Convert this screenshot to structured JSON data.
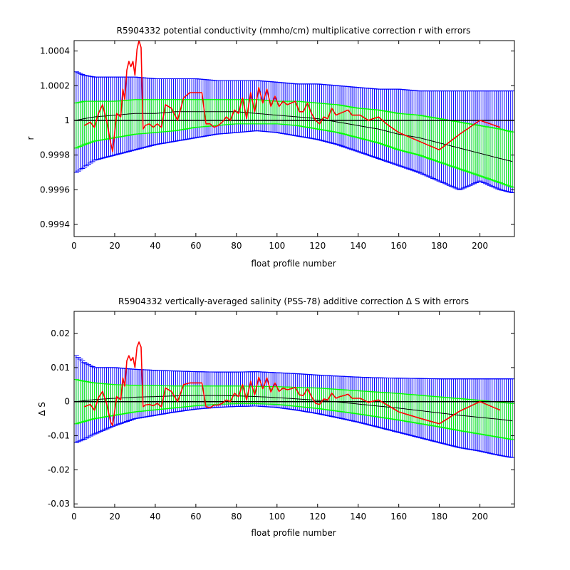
{
  "chart_data": [
    {
      "type": "line",
      "title": "R5904332 potential conductivity (mmho/cm) multiplicative correction r with errors",
      "xlabel": "float profile number",
      "ylabel": "r",
      "xlim": [
        0,
        217
      ],
      "ylim": [
        0.99933,
        1.00046
      ],
      "xticks": [
        0,
        20,
        40,
        60,
        80,
        100,
        120,
        140,
        160,
        180,
        200
      ],
      "xtick_labels": [
        "0",
        "20",
        "40",
        "60",
        "80",
        "100",
        "120",
        "140",
        "160",
        "180",
        "200"
      ],
      "yticks": [
        0.9994,
        0.9996,
        0.9998,
        1.0,
        1.0002,
        1.0004
      ],
      "ytick_labels": [
        "0.9994",
        "0.9996",
        "0.9998",
        "1",
        "1.0002",
        "1.0004"
      ],
      "reference_line": 1.0,
      "colors": {
        "outer_band": "#0000ff",
        "inner_band": "#00ff00",
        "fit": "#000000",
        "correction": "#ff0000",
        "reference": "#000000"
      },
      "bands": {
        "x": [
          1,
          5,
          10,
          20,
          30,
          40,
          50,
          60,
          70,
          80,
          90,
          100,
          110,
          120,
          130,
          140,
          150,
          160,
          170,
          180,
          190,
          200,
          210,
          217
        ],
        "fit": [
          1.0,
          1.00001,
          1.00002,
          1.00003,
          1.00004,
          1.00004,
          1.00005,
          1.00005,
          1.00005,
          1.00005,
          1.00004,
          1.00003,
          1.00002,
          1.00001,
          0.99999,
          0.99997,
          0.99995,
          0.99992,
          0.9999,
          0.99987,
          0.99984,
          0.99981,
          0.99978,
          0.99976
        ],
        "inner_upper": [
          1.0001,
          1.00011,
          1.00011,
          1.00011,
          1.00012,
          1.00012,
          1.00012,
          1.00012,
          1.00012,
          1.00012,
          1.00012,
          1.00011,
          1.00011,
          1.0001,
          1.00009,
          1.00007,
          1.00006,
          1.00004,
          1.00003,
          1.00001,
          0.99999,
          0.99997,
          0.99995,
          0.99993
        ],
        "inner_lower": [
          0.99984,
          0.99986,
          0.99988,
          0.9999,
          0.99992,
          0.99993,
          0.99994,
          0.99996,
          0.99997,
          0.99998,
          0.99998,
          0.99998,
          0.99997,
          0.99995,
          0.99993,
          0.9999,
          0.99987,
          0.99983,
          0.9998,
          0.99976,
          0.99972,
          0.99968,
          0.99964,
          0.99961
        ],
        "outer_upper": [
          1.00028,
          1.00026,
          1.00025,
          1.00025,
          1.00025,
          1.00024,
          1.00024,
          1.00024,
          1.00023,
          1.00023,
          1.00023,
          1.00022,
          1.00021,
          1.00021,
          1.0002,
          1.00019,
          1.00018,
          1.00018,
          1.00017,
          1.00017,
          1.00017,
          1.00017,
          1.00017,
          1.00017
        ],
        "outer_lower": [
          0.9997,
          0.99973,
          0.99977,
          0.9998,
          0.99983,
          0.99986,
          0.99988,
          0.9999,
          0.99992,
          0.99993,
          0.99994,
          0.99993,
          0.99991,
          0.99989,
          0.99986,
          0.99982,
          0.99978,
          0.99974,
          0.9997,
          0.99965,
          0.9996,
          0.99965,
          0.9996,
          0.99958
        ]
      },
      "series": [
        {
          "x": [
            5,
            8,
            10,
            12,
            14,
            16,
            18,
            19,
            21,
            23,
            24,
            25,
            26,
            27,
            28,
            29,
            30,
            31,
            32,
            33,
            34,
            35,
            37,
            39,
            41,
            43,
            45,
            48,
            51,
            54,
            57,
            60,
            63,
            65,
            67,
            69,
            71,
            73,
            75,
            77,
            79,
            81,
            83,
            85,
            87,
            89,
            91,
            93,
            95,
            97,
            99,
            101,
            103,
            105,
            107,
            109,
            111,
            113,
            115,
            117,
            119,
            121,
            123,
            125,
            127,
            129,
            131,
            133,
            135,
            137,
            139,
            141,
            145,
            150,
            155,
            160,
            170,
            180,
            190,
            200,
            210
          ],
          "values": [
            0.99997,
            0.99999,
            0.99996,
            1.00004,
            1.00009,
            1.0,
            0.99987,
            0.99982,
            1.00004,
            1.00002,
            1.00018,
            1.00012,
            1.00029,
            1.00034,
            1.00031,
            1.00034,
            1.00026,
            1.00041,
            1.00046,
            1.00042,
            0.99995,
            0.99997,
            0.99998,
            0.99996,
            0.99998,
            0.99996,
            1.00009,
            1.00007,
            1.0,
            1.00013,
            1.00016,
            1.00016,
            1.00016,
            0.99998,
            0.99998,
            0.99996,
            0.99997,
            0.99999,
            1.00002,
            1.0,
            1.00006,
            1.00004,
            1.00013,
            1.00001,
            1.00016,
            1.00005,
            1.00019,
            1.0001,
            1.00018,
            1.00008,
            1.00014,
            1.00008,
            1.00011,
            1.00009,
            1.0001,
            1.00011,
            1.00005,
            1.00005,
            1.0001,
            1.00004,
            1.0,
            0.99998,
            1.00002,
            1.00001,
            1.00007,
            1.00003,
            1.00004,
            1.00005,
            1.00006,
            1.00003,
            1.00003,
            1.00003,
            1.0,
            1.00002,
            0.99997,
            0.99993,
            0.99988,
            0.99983,
            0.99992,
            1.0,
            0.99996
          ]
        }
      ]
    },
    {
      "type": "line",
      "title": "R5904332 vertically-averaged salinity (PSS-78) additive correction Δ S with errors",
      "xlabel": "float profile number",
      "ylabel": "Δ S",
      "xlim": [
        0,
        217
      ],
      "ylim": [
        -0.031,
        0.0265
      ],
      "xticks": [
        0,
        20,
        40,
        60,
        80,
        100,
        120,
        140,
        160,
        180,
        200
      ],
      "xtick_labels": [
        "0",
        "20",
        "40",
        "60",
        "80",
        "100",
        "120",
        "140",
        "160",
        "180",
        "200"
      ],
      "yticks": [
        -0.03,
        -0.02,
        -0.01,
        0,
        0.01,
        0.02
      ],
      "ytick_labels": [
        "-0.03",
        "-0.02",
        "-0.01",
        "0",
        "0.01",
        "0.02"
      ],
      "reference_line": 0,
      "colors": {
        "outer_band": "#0000ff",
        "inner_band": "#00ff00",
        "fit": "#000000",
        "correction": "#ff0000",
        "reference": "#000000"
      },
      "bands": {
        "x": [
          1,
          5,
          10,
          20,
          30,
          40,
          50,
          60,
          70,
          80,
          90,
          100,
          110,
          120,
          130,
          140,
          150,
          160,
          170,
          180,
          190,
          200,
          210,
          217
        ],
        "fit": [
          0.0,
          0.0003,
          0.0006,
          0.001,
          0.0013,
          0.0015,
          0.0017,
          0.0018,
          0.0018,
          0.0017,
          0.0015,
          0.0012,
          0.0008,
          0.0004,
          -0.0001,
          -0.0007,
          -0.0013,
          -0.0019,
          -0.0026,
          -0.0033,
          -0.004,
          -0.0046,
          -0.0052,
          -0.0057
        ],
        "inner_upper": [
          0.0065,
          0.006,
          0.0055,
          0.005,
          0.0048,
          0.0047,
          0.0046,
          0.0046,
          0.0046,
          0.0046,
          0.0045,
          0.0044,
          0.0042,
          0.004,
          0.0036,
          0.0032,
          0.0028,
          0.0024,
          0.0019,
          0.0014,
          0.0009,
          0.0004,
          -0.0002,
          -0.0006
        ],
        "inner_lower": [
          -0.0065,
          -0.0058,
          -0.005,
          -0.004,
          -0.003,
          -0.0024,
          -0.0018,
          -0.0012,
          -0.0008,
          -0.0006,
          -0.0006,
          -0.0008,
          -0.0014,
          -0.002,
          -0.0028,
          -0.0036,
          -0.0045,
          -0.0054,
          -0.0064,
          -0.0074,
          -0.0085,
          -0.0095,
          -0.0105,
          -0.0112
        ],
        "outer_upper": [
          0.0135,
          0.0115,
          0.01,
          0.01,
          0.0095,
          0.0092,
          0.009,
          0.0088,
          0.0087,
          0.0087,
          0.0088,
          0.0085,
          0.0082,
          0.0078,
          0.0075,
          0.0072,
          0.007,
          0.0069,
          0.0068,
          0.0067,
          0.0067,
          0.0067,
          0.0067,
          0.0067
        ],
        "outer_lower": [
          -0.012,
          -0.011,
          -0.0095,
          -0.007,
          -0.005,
          -0.004,
          -0.003,
          -0.0022,
          -0.0017,
          -0.0014,
          -0.0013,
          -0.0017,
          -0.0025,
          -0.0035,
          -0.0047,
          -0.006,
          -0.0075,
          -0.009,
          -0.0105,
          -0.012,
          -0.0135,
          -0.0145,
          -0.0158,
          -0.0165
        ]
      },
      "series": [
        {
          "x": [
            5,
            8,
            10,
            12,
            14,
            16,
            18,
            19,
            21,
            23,
            24,
            25,
            26,
            27,
            28,
            29,
            30,
            31,
            32,
            33,
            34,
            35,
            37,
            39,
            41,
            43,
            45,
            48,
            51,
            54,
            57,
            60,
            63,
            65,
            67,
            69,
            71,
            73,
            75,
            77,
            79,
            81,
            83,
            85,
            87,
            89,
            91,
            93,
            95,
            97,
            99,
            101,
            103,
            105,
            107,
            109,
            111,
            113,
            115,
            117,
            119,
            121,
            123,
            125,
            127,
            129,
            131,
            133,
            135,
            137,
            139,
            141,
            145,
            150,
            155,
            160,
            170,
            180,
            190,
            200,
            210
          ],
          "values": [
            -0.0015,
            -0.0008,
            -0.0025,
            0.0012,
            0.003,
            -0.0005,
            -0.006,
            -0.007,
            0.0015,
            0.0005,
            0.007,
            0.0045,
            0.012,
            0.0135,
            0.012,
            0.013,
            0.01,
            0.016,
            0.0175,
            0.016,
            -0.0015,
            -0.001,
            -0.0008,
            -0.0012,
            -0.0005,
            -0.0015,
            0.004,
            0.003,
            0.0,
            0.005,
            0.0055,
            0.0055,
            0.0055,
            -0.0015,
            -0.0018,
            -0.001,
            -0.001,
            -0.0005,
            0.0005,
            0.0,
            0.0025,
            0.0015,
            0.005,
            0.0005,
            0.006,
            0.002,
            0.0072,
            0.0038,
            0.007,
            0.0028,
            0.0055,
            0.003,
            0.004,
            0.0035,
            0.0038,
            0.0042,
            0.002,
            0.0018,
            0.0038,
            0.0015,
            -0.0005,
            -0.0008,
            0.0008,
            0.0005,
            0.0025,
            0.001,
            0.0015,
            0.0018,
            0.0022,
            0.001,
            0.001,
            0.001,
            -0.0002,
            0.0005,
            -0.0012,
            -0.003,
            -0.0048,
            -0.0065,
            -0.0028,
            0.0,
            -0.0025
          ]
        }
      ]
    }
  ]
}
